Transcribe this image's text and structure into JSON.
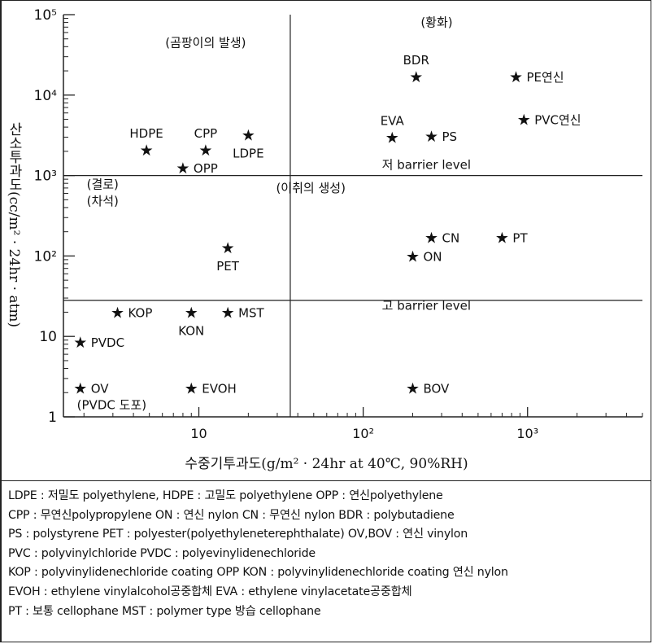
{
  "chart_data": {
    "type": "scatter",
    "title": "",
    "xlabel": "수중기투과도(g/m² · 24hr at 40℃, 90%RH)",
    "ylabel": "산소투과도(cc/m² · 24hr · atm)",
    "x_scale": "log",
    "y_scale": "log",
    "xlim": [
      1.5,
      5000
    ],
    "ylim": [
      1,
      100000
    ],
    "x_ticks": [
      {
        "value": 10,
        "label": "10"
      },
      {
        "value": 100,
        "label": "10²"
      },
      {
        "value": 1000,
        "label": "10³"
      }
    ],
    "y_ticks": [
      {
        "value": 1,
        "label": "1"
      },
      {
        "value": 10,
        "label": "10"
      },
      {
        "value": 100,
        "label": "10²"
      },
      {
        "value": 1000,
        "label": "10³"
      },
      {
        "value": 10000,
        "label": "10⁴"
      },
      {
        "value": 100000,
        "label": "10⁵"
      }
    ],
    "divider_lines": {
      "vertical_x": 36,
      "horizontal_y": [
        1000,
        28
      ]
    },
    "points": [
      {
        "label": "HDPE",
        "x": 4.8,
        "y": 2100,
        "label_pos": "above"
      },
      {
        "label": "CPP",
        "x": 11,
        "y": 2100,
        "label_pos": "above"
      },
      {
        "label": "LDPE",
        "x": 20,
        "y": 3200,
        "label_pos": "below"
      },
      {
        "label": "OPP",
        "x": 8,
        "y": 1250,
        "label_pos": "right"
      },
      {
        "label": "BDR",
        "x": 210,
        "y": 17000,
        "label_pos": "above"
      },
      {
        "label": "PE연신",
        "x": 850,
        "y": 17000,
        "label_pos": "right"
      },
      {
        "label": "EVA",
        "x": 150,
        "y": 3000,
        "label_pos": "above"
      },
      {
        "label": "PS",
        "x": 260,
        "y": 3100,
        "label_pos": "right"
      },
      {
        "label": "PVC연신",
        "x": 950,
        "y": 5000,
        "label_pos": "right"
      },
      {
        "label": "PET",
        "x": 15,
        "y": 128,
        "label_pos": "below"
      },
      {
        "label": "CN",
        "x": 260,
        "y": 170,
        "label_pos": "right"
      },
      {
        "label": "PT",
        "x": 700,
        "y": 170,
        "label_pos": "right"
      },
      {
        "label": "ON",
        "x": 200,
        "y": 100,
        "label_pos": "right"
      },
      {
        "label": "KOP",
        "x": 3.2,
        "y": 20,
        "label_pos": "right"
      },
      {
        "label": "KON",
        "x": 9,
        "y": 20,
        "label_pos": "below"
      },
      {
        "label": "MST",
        "x": 15,
        "y": 20,
        "label_pos": "right"
      },
      {
        "label": "PVDC",
        "x": 1.9,
        "y": 8.5,
        "label_pos": "right"
      },
      {
        "label": "OV",
        "x": 1.9,
        "y": 2.3,
        "label_pos": "right"
      },
      {
        "label": "EVOH",
        "x": 9,
        "y": 2.3,
        "label_pos": "right"
      },
      {
        "label": "BOV",
        "x": 200,
        "y": 2.3,
        "label_pos": "right"
      }
    ],
    "annotations": [
      {
        "text": "(곰팡이의 발생)",
        "x": 11,
        "y": 45000
      },
      {
        "text": "(황화)",
        "x": 280,
        "y": 80000
      },
      {
        "text": "저 barrier level",
        "x": 130,
        "y": 1350,
        "anchor": "start"
      },
      {
        "text": "(결로)",
        "x": 2.6,
        "y": 780
      },
      {
        "text": "(차석)",
        "x": 2.6,
        "y": 480
      },
      {
        "text": "(이취의 생성)",
        "x": 48,
        "y": 700
      },
      {
        "text": "고 barrier level",
        "x": 130,
        "y": 24,
        "anchor": "start"
      },
      {
        "text": "(PVDC 도포)",
        "x": 2.95,
        "y": 1.4
      }
    ]
  },
  "axis_labels": {
    "y": "산소투과도(cc/m² · 24hr · atm)",
    "x": "수중기투과도(g/m² · 24hr at 40℃, 90%RH)"
  },
  "legend_lines": [
    "LDPE : 저밀도 polyethylene, HDPE : 고밀도 polyethylene  OPP : 연신polyethylene",
    "CPP : 무연신polypropylene  ON : 연신 nylon  CN : 무연신 nylon  BDR : polybutadiene",
    "PS : polystyrene  PET : polyester(polyethyleneterephthalate)  OV,BOV : 연신 vinylon",
    "PVC : polyvinylchloride  PVDC : polyevinylidenechloride",
    "KOP : polyvinylidenechloride coating  OPP KON : polyvinylidenechloride coating 연신 nylon",
    "EVOH : ethylene vinylalcohol공중합체  EVA : ethylene vinylacetate공중합체",
    "PT : 보통 cellophane  MST : polymer type 방습 cellophane"
  ]
}
